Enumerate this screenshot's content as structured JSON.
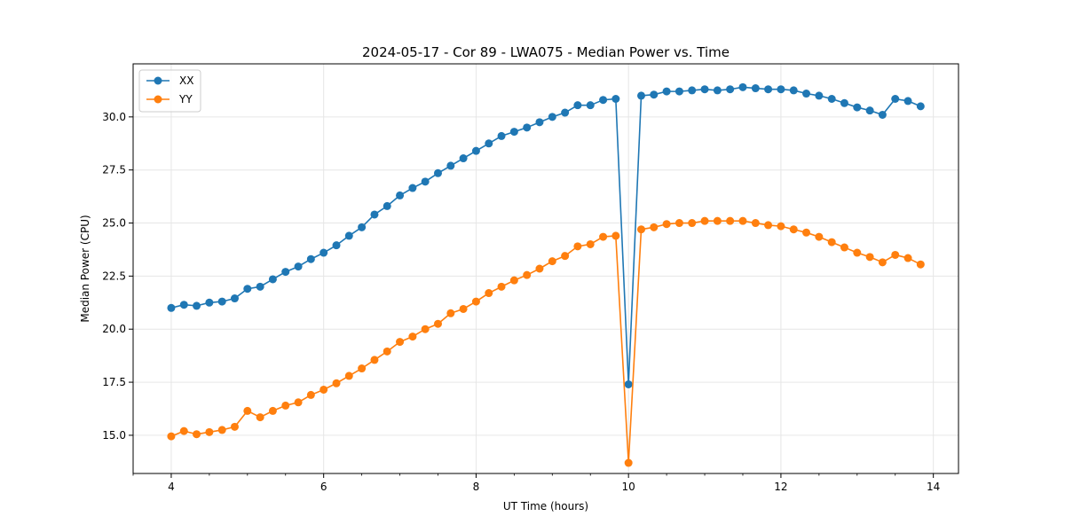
{
  "chart_data": {
    "type": "line",
    "title": "2024-05-17 - Cor 89 - LWA075 - Median Power vs. Time",
    "xlabel": "UT Time (hours)",
    "ylabel": "Median Power (CPU)",
    "xlim": [
      3.5,
      14.33
    ],
    "ylim": [
      13.2,
      32.5
    ],
    "xticks": [
      4,
      6,
      8,
      10,
      12,
      14
    ],
    "xtick_labels": [
      "4",
      "6",
      "8",
      "10",
      "12",
      "14"
    ],
    "yticks": [
      15.0,
      17.5,
      20.0,
      22.5,
      25.0,
      27.5,
      30.0
    ],
    "ytick_labels": [
      "15.0",
      "17.5",
      "20.0",
      "22.5",
      "25.0",
      "27.5",
      "30.0"
    ],
    "grid": true,
    "legend_position": "top-left",
    "x": [
      4.0,
      4.167,
      4.333,
      4.5,
      4.667,
      4.833,
      5.0,
      5.167,
      5.333,
      5.5,
      5.667,
      5.833,
      6.0,
      6.167,
      6.333,
      6.5,
      6.667,
      6.833,
      7.0,
      7.167,
      7.333,
      7.5,
      7.667,
      7.833,
      8.0,
      8.167,
      8.333,
      8.5,
      8.667,
      8.833,
      9.0,
      9.167,
      9.333,
      9.5,
      9.667,
      9.833,
      10.0,
      10.167,
      10.333,
      10.5,
      10.667,
      10.833,
      11.0,
      11.167,
      11.333,
      11.5,
      11.667,
      11.833,
      12.0,
      12.167,
      12.333,
      12.5,
      12.667,
      12.833,
      13.0,
      13.167,
      13.333,
      13.5,
      13.667,
      13.833
    ],
    "series": [
      {
        "name": "XX",
        "color": "#1f77b4",
        "values": [
          21.0,
          21.15,
          21.1,
          21.25,
          21.3,
          21.45,
          21.9,
          22.0,
          22.35,
          22.7,
          22.95,
          23.3,
          23.6,
          23.95,
          24.4,
          24.8,
          25.4,
          25.8,
          26.3,
          26.65,
          26.95,
          27.35,
          27.7,
          28.05,
          28.4,
          28.75,
          29.1,
          29.3,
          29.5,
          29.75,
          30.0,
          30.2,
          30.55,
          30.55,
          30.8,
          30.85,
          17.4,
          31.0,
          31.05,
          31.2,
          31.2,
          31.25,
          31.3,
          31.25,
          31.3,
          31.4,
          31.35,
          31.3,
          31.3,
          31.25,
          31.1,
          31.0,
          30.85,
          30.65,
          30.45,
          30.3,
          30.1,
          30.85,
          30.75,
          30.5
        ]
      },
      {
        "name": "YY",
        "color": "#ff7f0e",
        "values": [
          14.95,
          15.2,
          15.05,
          15.15,
          15.25,
          15.4,
          16.15,
          15.85,
          16.15,
          16.4,
          16.55,
          16.9,
          17.15,
          17.45,
          17.8,
          18.15,
          18.55,
          18.95,
          19.4,
          19.65,
          20.0,
          20.25,
          20.75,
          20.95,
          21.3,
          21.7,
          22.0,
          22.3,
          22.55,
          22.85,
          23.2,
          23.45,
          23.9,
          24.0,
          24.35,
          24.4,
          13.7,
          24.7,
          24.8,
          24.95,
          25.0,
          25.0,
          25.1,
          25.1,
          25.1,
          25.1,
          25.0,
          24.9,
          24.85,
          24.7,
          24.55,
          24.35,
          24.1,
          23.85,
          23.6,
          23.4,
          23.15,
          23.5,
          23.35,
          23.05
        ]
      }
    ]
  }
}
